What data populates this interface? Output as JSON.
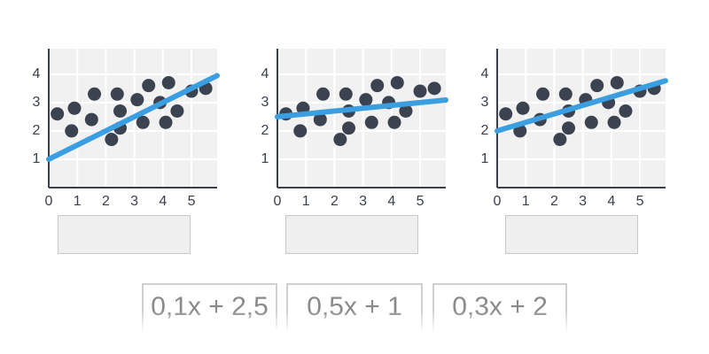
{
  "chart_data": [
    {
      "type": "scatter",
      "points": {
        "color": "#3c4350",
        "x": [
          0.3,
          0.8,
          0.9,
          1.5,
          1.6,
          2.2,
          2.4,
          2.5,
          2.5,
          3.1,
          3.3,
          3.5,
          3.9,
          4.1,
          4.2,
          4.5,
          5.0,
          5.5
        ],
        "values": [
          2.6,
          2.0,
          2.8,
          2.4,
          3.3,
          1.7,
          3.3,
          2.7,
          2.1,
          3.1,
          2.3,
          3.6,
          3.0,
          2.3,
          3.7,
          2.7,
          3.4,
          3.5
        ]
      },
      "trend": {
        "color": "#3a9ee0",
        "x": [
          0,
          5.9
        ],
        "values": [
          1,
          3.95
        ]
      },
      "xlim": [
        0,
        5.9
      ],
      "ylim": [
        0,
        4.9
      ],
      "xticks": [
        0,
        1,
        2,
        3,
        4,
        5
      ],
      "yticks": [
        1,
        2,
        3,
        4
      ],
      "grid": true
    },
    {
      "type": "scatter",
      "points": {
        "color": "#3c4350",
        "x": [
          0.3,
          0.8,
          0.9,
          1.5,
          1.6,
          2.2,
          2.4,
          2.5,
          2.5,
          3.1,
          3.3,
          3.5,
          3.9,
          4.1,
          4.2,
          4.5,
          5.0,
          5.5
        ],
        "values": [
          2.6,
          2.0,
          2.8,
          2.4,
          3.3,
          1.7,
          3.3,
          2.7,
          2.1,
          3.1,
          2.3,
          3.6,
          3.0,
          2.3,
          3.7,
          2.7,
          3.4,
          3.5
        ]
      },
      "trend": {
        "color": "#3a9ee0",
        "x": [
          0,
          5.9
        ],
        "values": [
          2.5,
          3.09
        ]
      },
      "xlim": [
        0,
        5.9
      ],
      "ylim": [
        0,
        4.9
      ],
      "xticks": [
        0,
        1,
        2,
        3,
        4,
        5
      ],
      "yticks": [
        1,
        2,
        3,
        4
      ],
      "grid": true
    },
    {
      "type": "scatter",
      "points": {
        "color": "#3c4350",
        "x": [
          0.3,
          0.8,
          0.9,
          1.5,
          1.6,
          2.2,
          2.4,
          2.5,
          2.5,
          3.1,
          3.3,
          3.5,
          3.9,
          4.1,
          4.2,
          4.5,
          5.0,
          5.5
        ],
        "values": [
          2.6,
          2.0,
          2.8,
          2.4,
          3.3,
          1.7,
          3.3,
          2.7,
          2.1,
          3.1,
          2.3,
          3.6,
          3.0,
          2.3,
          3.7,
          2.7,
          3.4,
          3.5
        ]
      },
      "trend": {
        "color": "#3a9ee0",
        "x": [
          0,
          5.9
        ],
        "values": [
          2,
          3.77
        ]
      },
      "xlim": [
        0,
        5.9
      ],
      "ylim": [
        0,
        4.9
      ],
      "xticks": [
        0,
        1,
        2,
        3,
        4,
        5
      ],
      "yticks": [
        1,
        2,
        3,
        4
      ],
      "grid": true
    }
  ],
  "answers": [
    "0,1x + 2,5",
    "0,5x + 1",
    "0,3x + 2"
  ]
}
